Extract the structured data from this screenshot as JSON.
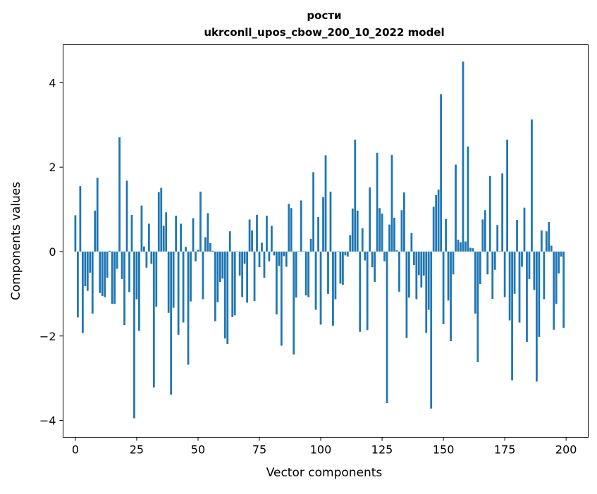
{
  "chart_data": {
    "type": "bar",
    "title_line1": "рости",
    "title_line2": "ukrconll_upos_cbow_200_10_2022 model",
    "xlabel": "Vector components",
    "ylabel": "Components values",
    "xlim": [
      -5,
      209
    ],
    "ylim": [
      -4.4,
      4.9
    ],
    "xticks": [
      0,
      25,
      50,
      75,
      100,
      125,
      150,
      175,
      200
    ],
    "yticks": [
      -4,
      -2,
      0,
      2,
      4
    ],
    "xtick_labels": [
      "0",
      "25",
      "50",
      "75",
      "100",
      "125",
      "150",
      "175",
      "200"
    ],
    "ytick_labels": [
      "−4",
      "−2",
      "0",
      "2",
      "4"
    ],
    "bar_color": "#1f77b4",
    "values": [
      0.86,
      -1.56,
      1.55,
      -1.93,
      -0.82,
      -0.93,
      -0.5,
      -1.47,
      0.97,
      1.75,
      -0.98,
      -1.05,
      -1.08,
      -0.62,
      0.02,
      -1.24,
      -1.24,
      -0.41,
      2.71,
      -0.65,
      -1.74,
      1.68,
      -0.96,
      0.87,
      -3.95,
      -1.13,
      -1.88,
      1.09,
      0.12,
      -0.38,
      0.66,
      -0.29,
      -3.22,
      -1.31,
      1.41,
      1.51,
      0.61,
      0.93,
      -1.45,
      -3.39,
      -1.33,
      0.85,
      -1.97,
      0.66,
      -1.68,
      0.11,
      -2.68,
      -1.18,
      0.79,
      -0.23,
      0.04,
      1.42,
      -1.13,
      0.34,
      0.91,
      0.2,
      0.02,
      -1.65,
      -1.2,
      -0.72,
      -0.64,
      -2.06,
      -2.19,
      0.48,
      -1.55,
      -1.51,
      0.01,
      -0.57,
      -1.08,
      -0.29,
      -1.21,
      0.76,
      0.5,
      -1.17,
      0.87,
      -0.37,
      0.21,
      -0.62,
      0.85,
      -0.23,
      0.61,
      -0.09,
      -1.49,
      -0.34,
      -2.23,
      -0.11,
      -0.36,
      1.13,
      1.03,
      -2.44,
      -1.09,
      0.01,
      1.21,
      0.01,
      -1.04,
      -1.08,
      0.3,
      1.88,
      -1.38,
      0.82,
      -1.73,
      1.29,
      2.28,
      -1.0,
      1.42,
      -1.76,
      -1.13,
      0.01,
      -0.76,
      -0.79,
      -0.09,
      -0.12,
      0.39,
      1.02,
      2.65,
      0.97,
      -1.9,
      0.55,
      -0.21,
      -1.86,
      1.52,
      -0.37,
      -0.72,
      2.34,
      1.03,
      0.9,
      -0.23,
      -3.59,
      0.64,
      2.29,
      0.8,
      0.03,
      -0.95,
      0.98,
      1.4,
      -2.05,
      -1.09,
      0.44,
      -0.32,
      -1.13,
      -0.56,
      -0.85,
      -0.57,
      -1.93,
      -1.38,
      -3.72,
      1.06,
      1.34,
      1.47,
      3.73,
      -1.72,
      0.77,
      -1.16,
      -2.12,
      -0.54,
      2.06,
      0.28,
      0.22,
      4.5,
      0.24,
      2.49,
      0.09,
      0.08,
      -1.47,
      -2.62,
      -0.77,
      0.76,
      0.98,
      -0.54,
      1.79,
      -1.12,
      -0.43,
      0.63,
      0.01,
      1.85,
      -1.08,
      2.65,
      -1.63,
      -3.05,
      -1.0,
      0.75,
      -1.68,
      -0.36,
      1.04,
      -2.14,
      -0.65,
      3.13,
      -0.91,
      -3.08,
      -2.02,
      0.5,
      -1.13,
      0.48,
      0.7,
      0.14,
      -1.85,
      -1.24,
      -0.52,
      -0.12,
      -1.81
    ]
  }
}
